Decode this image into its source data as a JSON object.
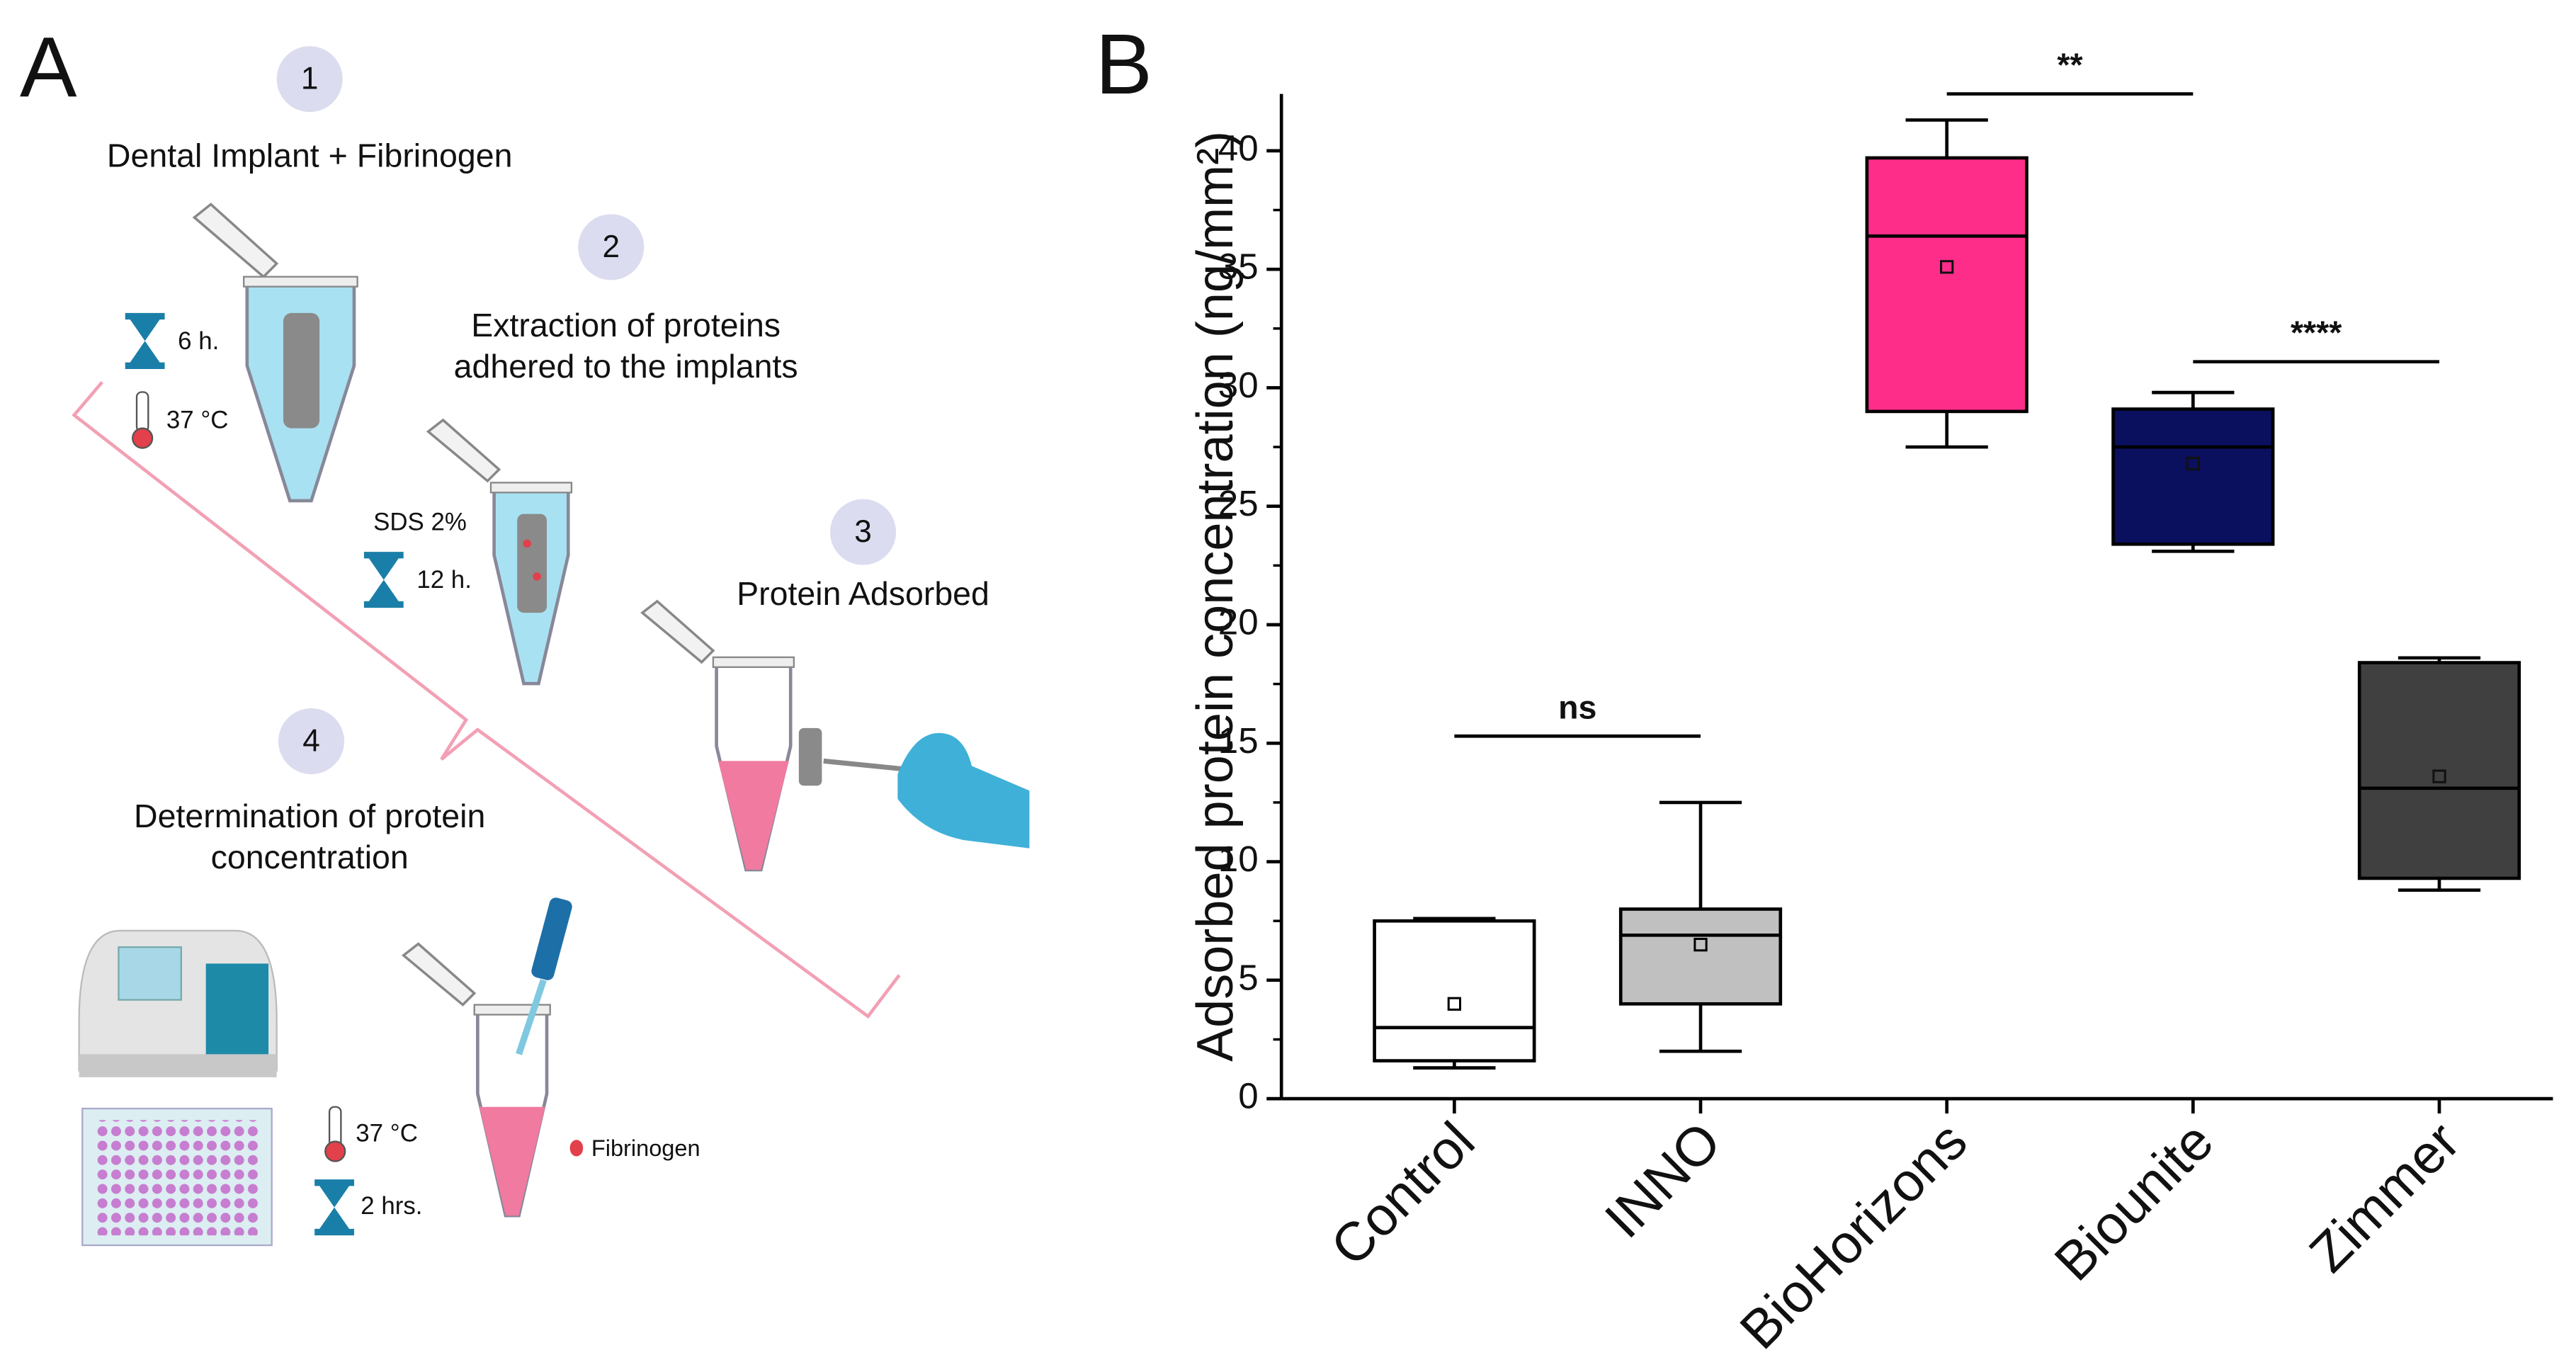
{
  "panel_a": {
    "label": "A",
    "step_numbers": [
      "1",
      "2",
      "3",
      "4"
    ],
    "step_titles": [
      [
        "Dental Implant + Fibrinogen"
      ],
      [
        "Extraction of proteins",
        "adhered to the implants"
      ],
      [
        "Protein Adsorbed"
      ],
      [
        "Determination of protein",
        "concentration"
      ]
    ],
    "notes": [
      "6 h.",
      "37 °C",
      "SDS 2%",
      "12 h.",
      "37 °C",
      "2 hrs.",
      "Fibrinogen"
    ]
  },
  "chart_data": {
    "type": "box",
    "panel_label": "B",
    "ylabel": "Adsorbed protein concentration (ng/mm²)",
    "categories": [
      "Control",
      "INNO",
      "BioHorizons",
      "Biounite",
      "Zimmer"
    ],
    "boxes": [
      {
        "color": "#ffffff",
        "min": 1.3,
        "q1": 1.6,
        "median": 3.0,
        "q3": 7.5,
        "max": 7.6,
        "mean": 4.0
      },
      {
        "color": "#c0c0c0",
        "min": 2.0,
        "q1": 4.0,
        "median": 6.9,
        "q3": 8.0,
        "max": 12.5,
        "mean": 6.5
      },
      {
        "color": "#ff2d8a",
        "min": 27.5,
        "q1": 29.0,
        "median": 36.4,
        "q3": 39.7,
        "max": 41.3,
        "mean": 35.1
      },
      {
        "color": "#0a0f5e",
        "min": 23.1,
        "q1": 23.4,
        "median": 27.5,
        "q3": 29.1,
        "max": 29.8,
        "mean": 26.8
      },
      {
        "color": "#404040",
        "min": 8.8,
        "q1": 9.3,
        "median": 13.1,
        "q3": 18.4,
        "max": 18.6,
        "mean": 13.6
      }
    ],
    "ylim": [
      0,
      42.4
    ],
    "yticks": [
      0,
      5,
      10,
      15,
      20,
      25,
      30,
      35,
      40
    ],
    "comparisons": [
      {
        "label": "ns",
        "groups": [
          "Control",
          "INNO"
        ],
        "y": 15.3
      },
      {
        "label": "**",
        "groups": [
          "BioHorizons",
          "Biounite"
        ],
        "y": 42.4
      },
      {
        "label": "****",
        "groups": [
          "Biounite",
          "Zimmer"
        ],
        "y": 31.1
      }
    ]
  }
}
